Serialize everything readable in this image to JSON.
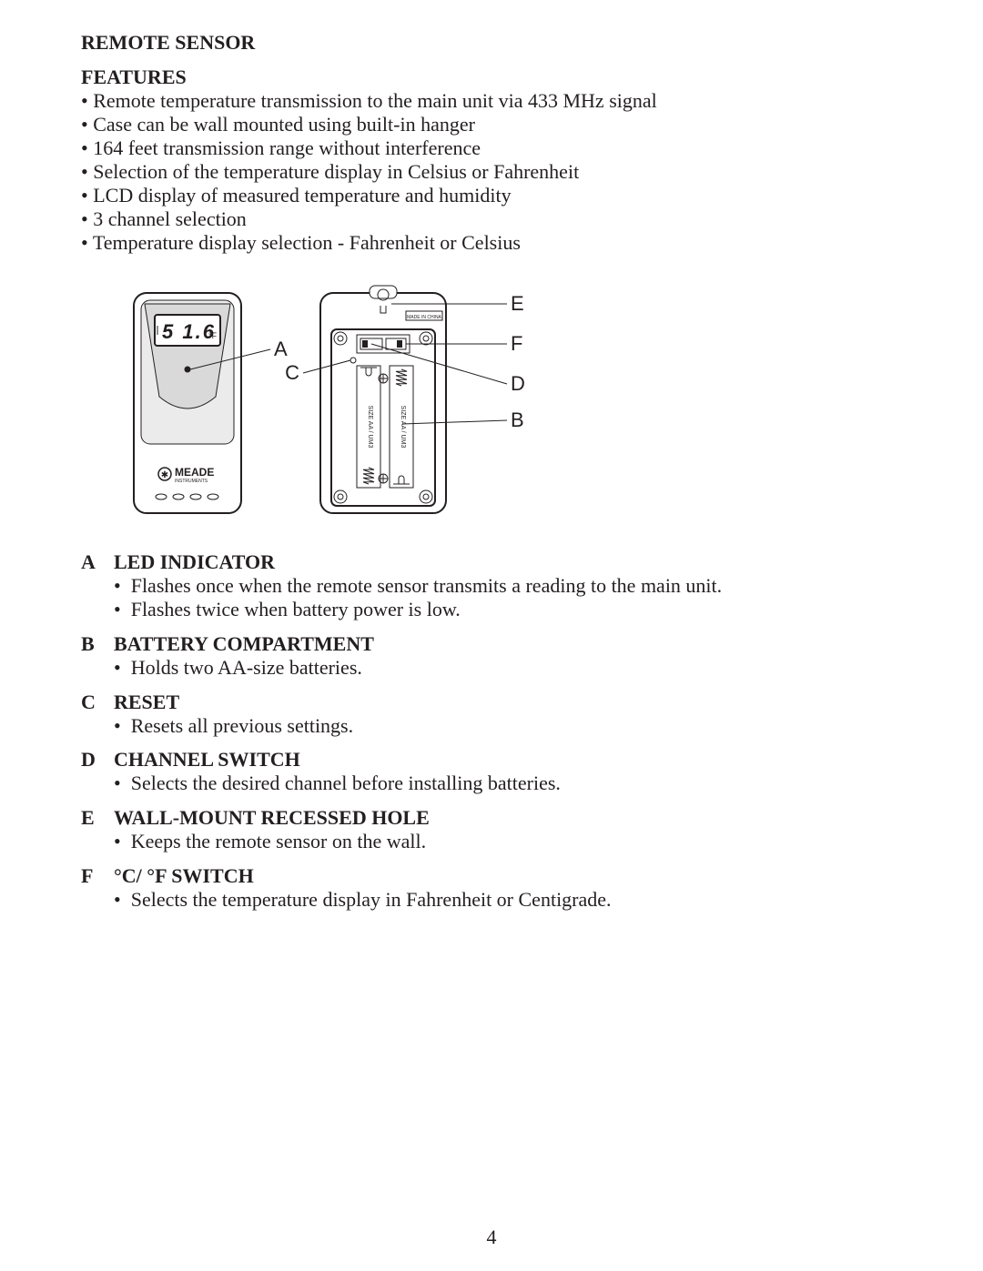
{
  "page_number": "4",
  "title": "REMOTE SENSOR",
  "features": {
    "heading": "FEATURES",
    "items": [
      "Remote temperature transmission to the main unit via 433 MHz signal",
      "Case can be wall mounted using built-in hanger",
      "164 feet transmission range without interference",
      "Selection of the temperature display in Celsius or Fahrenheit",
      "LCD display of measured temperature and humidity",
      "3 channel selection",
      "Temperature display selection - Fahrenheit or Celsius"
    ]
  },
  "diagram": {
    "reading": "5 1.6",
    "unit": "°F",
    "brand": "MEADE",
    "brand_sub": "INSTRUMENTS",
    "battery_text": "SIZE AA / UM3",
    "made_in": "MADE IN CHINA",
    "callouts": {
      "A": "A",
      "B": "B",
      "C": "C",
      "D": "D",
      "E": "E",
      "F": "F"
    },
    "style": {
      "stroke": "#231f20",
      "fill_body": "#ffffff",
      "fill_front_shade": "#ebebeb",
      "fill_lcd": "#ffffff",
      "stroke_width": 2,
      "stroke_thin": 1,
      "callout_font": "Arial, Helvetica, sans-serif",
      "callout_size": 22
    }
  },
  "sections": [
    {
      "letter": "A",
      "title": "LED INDICATOR",
      "bullets": [
        "Flashes once when the remote sensor transmits a reading to the main unit.",
        "Flashes twice when battery power is low."
      ]
    },
    {
      "letter": "B",
      "title": "BATTERY COMPARTMENT",
      "bullets": [
        "Holds two AA-size batteries."
      ]
    },
    {
      "letter": "C",
      "title": "RESET",
      "bullets": [
        "Resets all previous settings."
      ]
    },
    {
      "letter": "D",
      "title": "CHANNEL SWITCH",
      "bullets": [
        "Selects the desired channel before installing batteries."
      ]
    },
    {
      "letter": "E",
      "title": "WALL-MOUNT RECESSED HOLE",
      "bullets": [
        "Keeps the remote sensor on the wall."
      ]
    },
    {
      "letter": "F",
      "title": "°C/ °F SWITCH",
      "bullets": [
        "Selects the temperature display in Fahrenheit or Centigrade."
      ]
    }
  ]
}
